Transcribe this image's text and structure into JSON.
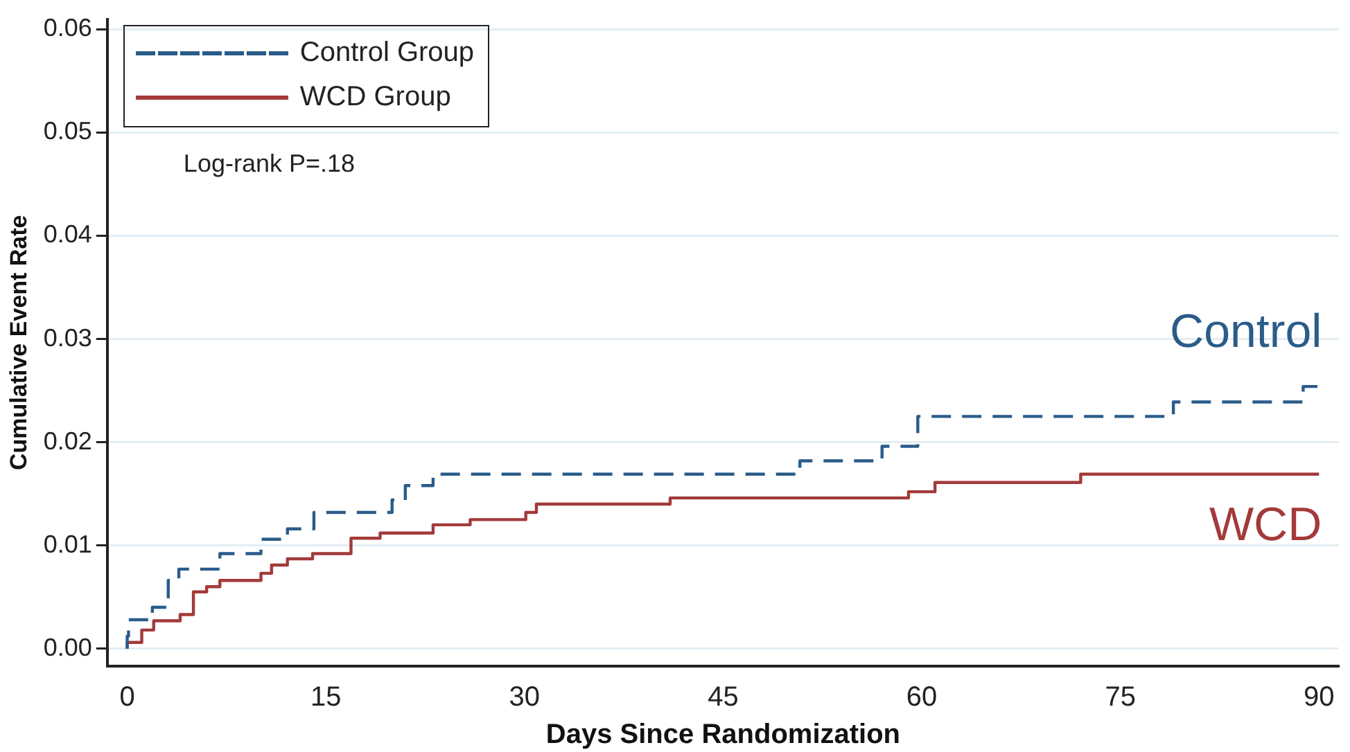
{
  "chart_data": {
    "type": "step",
    "xlabel": "Days Since Randomization",
    "ylabel": "Cumulative Event Rate",
    "xlim": [
      -1.5,
      91.5
    ],
    "xticks": [
      0,
      15,
      30,
      45,
      60,
      75,
      90
    ],
    "ylim": [
      -0.0017,
      0.061
    ],
    "yticks": [
      {
        "value": 0,
        "label": "0.00"
      },
      {
        "value": 0.01,
        "label": "0.01"
      },
      {
        "value": 0.02,
        "label": "0.02"
      },
      {
        "value": 0.03,
        "label": "0.03"
      },
      {
        "value": 0.04,
        "label": "0.04"
      },
      {
        "value": 0.05,
        "label": "0.05"
      },
      {
        "value": 0.06,
        "label": "0.06"
      }
    ],
    "grid": "y",
    "legend": "top left",
    "marker": "none",
    "series": [
      {
        "name": "Control Group",
        "color": "#2a5c8a",
        "line_style": "dashed",
        "x": [
          0,
          0.1,
          1.9,
          3.1,
          3.9,
          7,
          10.1,
          12.1,
          14.1,
          20,
          21,
          23.1,
          50.8,
          57,
          59.7,
          79,
          88.8,
          89.9,
          90
        ],
        "values": [
          0,
          0.0012,
          0.0028,
          0.004,
          0.0066,
          0.0077,
          0.0092,
          0.0106,
          0.0116,
          0.0132,
          0.0144,
          0.0158,
          0.0169,
          0.0182,
          0.0196,
          0.0225,
          0.0239,
          0.0254,
          0.0254
        ]
      },
      {
        "name": "WCD Group",
        "color": "#a33a3a",
        "line_style": "solid",
        "x": [
          0,
          1.1,
          2,
          4,
          5,
          6,
          7,
          10.1,
          10.9,
          12.1,
          14,
          16.9,
          19.1,
          23.1,
          25.9,
          30.1,
          30.9,
          41,
          59,
          61,
          72,
          88,
          90
        ],
        "values": [
          0,
          0.0006,
          0.0018,
          0.0027,
          0.0033,
          0.0055,
          0.006,
          0.0066,
          0.0073,
          0.0081,
          0.0087,
          0.0092,
          0.0107,
          0.0112,
          0.012,
          0.0125,
          0.0132,
          0.014,
          0.0146,
          0.0152,
          0.0161,
          0.0169,
          0.0169
        ]
      }
    ],
    "annotations": [
      "Log-rank P=.18",
      "Control",
      "WCD"
    ]
  }
}
